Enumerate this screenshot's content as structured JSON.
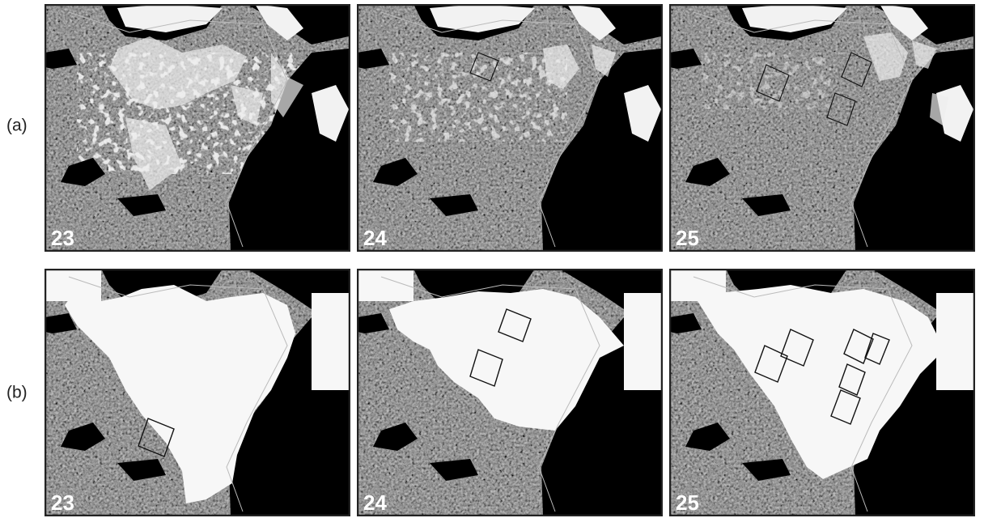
{
  "rows": [
    {
      "label": "(a)",
      "panels": [
        "23",
        "24",
        "25"
      ]
    },
    {
      "label": "(b)",
      "panels": [
        "23",
        "24",
        "25"
      ]
    }
  ]
}
